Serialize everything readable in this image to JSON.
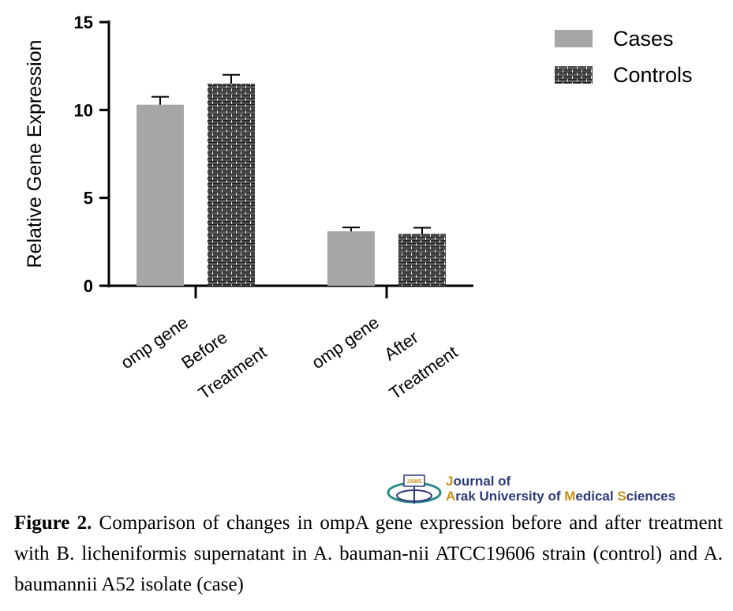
{
  "chart_data": {
    "type": "bar",
    "ylabel": "Relative Gene Expression",
    "ylim": [
      0,
      15
    ],
    "yticks": [
      0,
      5,
      10,
      15
    ],
    "categories": [
      [
        "omp gene",
        "Before",
        "Treatment"
      ],
      [
        "omp gene",
        "After",
        "Treatment"
      ]
    ],
    "series": [
      {
        "name": "Cases",
        "values": [
          10.3,
          3.1
        ],
        "errors": [
          0.45,
          0.22
        ],
        "fill": "#a6a6a8",
        "pattern": "solid"
      },
      {
        "name": "Controls",
        "values": [
          11.5,
          2.95
        ],
        "errors": [
          0.5,
          0.35
        ],
        "fill": "#555555",
        "pattern": "brick"
      }
    ],
    "legend_position": "top-right",
    "grid": false
  },
  "journal": {
    "line1_first": "J",
    "line1_rest": "ournal of",
    "w1_first": "A",
    "w1_rest": "rak University of ",
    "w2_first": "M",
    "w2_rest": "edical ",
    "w3_first": "S",
    "w3_rest": "ciences",
    "logo_text": "JAMS"
  },
  "caption": {
    "label": "Figure 2.",
    "text": " Comparison of changes in ompA gene expression before and after treatment with B. licheniformis supernatant in A. bauman-nii ATCC19606 strain (control) and A. baumannii A52 isolate (case)"
  }
}
